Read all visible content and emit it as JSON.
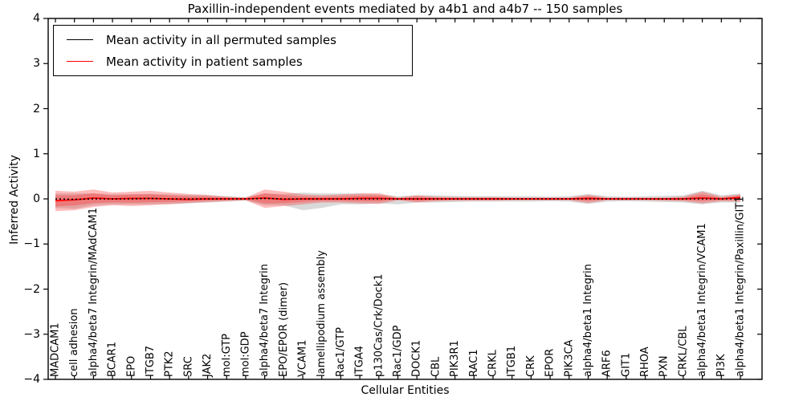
{
  "chart_data": {
    "type": "line",
    "title": "Paxillin-independent events mediated by a4b1 and a4b7 -- 150 samples",
    "xlabel": "Cellular Entities",
    "ylabel": "Inferred Activity",
    "ylim": [
      -4,
      4
    ],
    "yticks": [
      "4",
      "3",
      "2",
      "1",
      "0",
      "−1",
      "−2",
      "−3",
      "−4"
    ],
    "ytick_values": [
      4,
      3,
      2,
      1,
      0,
      -1,
      -2,
      -3,
      -4
    ],
    "grid": false,
    "legend_position": "upper left",
    "categories": [
      "MADCAM1",
      "cell adhesion",
      "alpha4/beta7 Integrin/MAdCAM1",
      "BCAR1",
      "EPO",
      "ITGB7",
      "PTK2",
      "SRC",
      "JAK2",
      "mol:GTP",
      "mol:GDP",
      "alpha4/beta7 Integrin",
      "EPO/EPOR (dimer)",
      "VCAM1",
      "lamellipodium assembly",
      "Rac1/GTP",
      "ITGA4",
      "p130Cas/Crk/Dock1",
      "Rac1/GDP",
      "DOCK1",
      "CBL",
      "PIK3R1",
      "RAC1",
      "CRKL",
      "ITGB1",
      "CRK",
      "EPOR",
      "PIK3CA",
      "alpha4/beta1 Integrin",
      "ARF6",
      "GIT1",
      "RHOA",
      "PXN",
      "CRKL/CBL",
      "alpha4/beta1 Integrin/VCAM1",
      "PI3K",
      "alpha4/beta1 Integrin/Paxillin/GIT1"
    ],
    "series": [
      {
        "name": "Mean activity in all permuted samples",
        "color": "#000000",
        "style": "dotted",
        "values": [
          0,
          -0.01,
          0,
          0,
          0,
          0.01,
          0,
          0,
          0,
          0,
          0,
          0.01,
          0,
          0,
          0,
          0,
          0,
          0,
          0,
          0,
          0,
          0,
          0,
          0,
          0,
          0,
          0,
          0,
          0,
          0,
          0,
          0,
          0,
          0,
          0,
          0,
          0
        ]
      },
      {
        "name": "Mean activity in patient samples",
        "color": "#ff0000",
        "style": "solid",
        "values": [
          -0.04,
          -0.02,
          0.02,
          0,
          0.01,
          0.01,
          0,
          -0.01,
          0,
          0,
          0,
          0.02,
          -0.01,
          0,
          0,
          0,
          0.01,
          0.01,
          0,
          0,
          0,
          0,
          0,
          0,
          0,
          0,
          0,
          0,
          0.01,
          0,
          0,
          0,
          0,
          0,
          0.02,
          0,
          0.03
        ]
      }
    ],
    "bands": [
      {
        "name": "permuted-samples-range",
        "color": "#aaaaaa",
        "opacity": 0.45,
        "inner_scale": 1,
        "upper": [
          0.12,
          0.12,
          0.12,
          0.1,
          0.11,
          0.11,
          0.1,
          0.09,
          0.08,
          0.06,
          0.04,
          0.12,
          0.11,
          0.14,
          0.12,
          0.12,
          0.12,
          0.1,
          0.06,
          0.08,
          0.08,
          0.07,
          0.06,
          0.06,
          0.06,
          0.06,
          0.05,
          0.06,
          0.11,
          0.06,
          0.05,
          0.06,
          0.07,
          0.08,
          0.18,
          0.08,
          0.12
        ],
        "lower": [
          -0.2,
          -0.22,
          -0.14,
          -0.12,
          -0.12,
          -0.12,
          -0.11,
          -0.1,
          -0.08,
          -0.06,
          -0.04,
          -0.14,
          -0.14,
          -0.25,
          -0.2,
          -0.12,
          -0.12,
          -0.1,
          -0.12,
          -0.08,
          -0.08,
          -0.07,
          -0.06,
          -0.06,
          -0.06,
          -0.06,
          -0.05,
          -0.06,
          -0.11,
          -0.06,
          -0.05,
          -0.06,
          -0.07,
          -0.08,
          -0.12,
          -0.08,
          -0.08
        ]
      },
      {
        "name": "patient-samples-range",
        "color": "#ff2222",
        "opacity": 0.3,
        "inner_scale": 0.55,
        "upper": [
          0.18,
          0.16,
          0.21,
          0.14,
          0.16,
          0.18,
          0.14,
          0.11,
          0.09,
          0.05,
          0.03,
          0.21,
          0.16,
          0.1,
          0.08,
          0.1,
          0.12,
          0.13,
          0.03,
          0.08,
          0.05,
          0.04,
          0.04,
          0.04,
          0.03,
          0.03,
          0.03,
          0.03,
          0.09,
          0.03,
          0.03,
          0.03,
          0.03,
          0.05,
          0.16,
          0.05,
          0.1
        ],
        "lower": [
          -0.27,
          -0.25,
          -0.18,
          -0.14,
          -0.16,
          -0.14,
          -0.12,
          -0.09,
          -0.07,
          -0.05,
          -0.03,
          -0.2,
          -0.16,
          -0.12,
          -0.08,
          -0.08,
          -0.1,
          -0.11,
          -0.03,
          -0.08,
          -0.05,
          -0.04,
          -0.04,
          -0.04,
          -0.03,
          -0.03,
          -0.03,
          -0.03,
          -0.09,
          -0.03,
          -0.03,
          -0.03,
          -0.04,
          -0.05,
          -0.1,
          -0.05,
          -0.06
        ]
      }
    ]
  },
  "colors": {
    "frame": "#000000",
    "background": "#ffffff",
    "permuted_line": "#000000",
    "patient_line": "#ff0000"
  }
}
